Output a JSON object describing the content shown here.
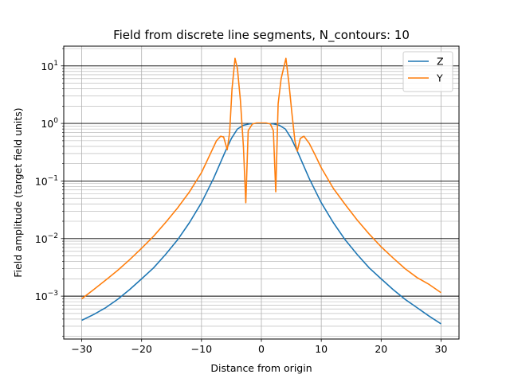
{
  "chart_data": {
    "type": "line",
    "title": "Field from discrete line segments, N_contours: 10",
    "xlabel": "Distance from origin",
    "ylabel": "Field amplitude (target field units)",
    "xlim": [
      -33,
      33
    ],
    "ylim": [
      0.00018,
      22
    ],
    "yscale": "log",
    "x_ticks": [
      -30,
      -20,
      -10,
      0,
      10,
      20,
      30
    ],
    "x_tick_labels": [
      "−30",
      "−20",
      "−10",
      "0",
      "10",
      "20",
      "30"
    ],
    "y_major_ticks": [
      0.001,
      0.01,
      0.1,
      1,
      10
    ],
    "y_tick_labels": [
      {
        "base": "10",
        "exp": "−3"
      },
      {
        "base": "10",
        "exp": "−2"
      },
      {
        "base": "10",
        "exp": "−1"
      },
      {
        "base": "10",
        "exp": "0"
      },
      {
        "base": "10",
        "exp": "1"
      }
    ],
    "grid": true,
    "legend_position": "top-right",
    "series": [
      {
        "name": "Z",
        "color": "#1f77b4",
        "points": [
          [
            -30,
            0.00038
          ],
          [
            -28,
            0.00048
          ],
          [
            -26,
            0.00063
          ],
          [
            -24,
            0.00088
          ],
          [
            -22,
            0.0013
          ],
          [
            -20,
            0.002
          ],
          [
            -18,
            0.0031
          ],
          [
            -16,
            0.0053
          ],
          [
            -14,
            0.0095
          ],
          [
            -12,
            0.019
          ],
          [
            -10,
            0.042
          ],
          [
            -8,
            0.11
          ],
          [
            -6,
            0.33
          ],
          [
            -5,
            0.55
          ],
          [
            -4,
            0.8
          ],
          [
            -3,
            0.93
          ],
          [
            -2,
            0.98
          ],
          [
            -1,
            1.0
          ],
          [
            0,
            1.0
          ],
          [
            1,
            1.0
          ],
          [
            2,
            0.98
          ],
          [
            3,
            0.93
          ],
          [
            4,
            0.8
          ],
          [
            5,
            0.55
          ],
          [
            6,
            0.33
          ],
          [
            8,
            0.11
          ],
          [
            10,
            0.042
          ],
          [
            12,
            0.019
          ],
          [
            14,
            0.0095
          ],
          [
            16,
            0.0053
          ],
          [
            18,
            0.0031
          ],
          [
            20,
            0.002
          ],
          [
            22,
            0.0013
          ],
          [
            24,
            0.00088
          ],
          [
            26,
            0.00063
          ],
          [
            28,
            0.00045
          ],
          [
            30,
            0.00033
          ]
        ]
      },
      {
        "name": "Y",
        "color": "#ff7f0e",
        "points": [
          [
            -30,
            0.0009
          ],
          [
            -28,
            0.0013
          ],
          [
            -26,
            0.0019
          ],
          [
            -24,
            0.0028
          ],
          [
            -22,
            0.0043
          ],
          [
            -20,
            0.0068
          ],
          [
            -18,
            0.011
          ],
          [
            -16,
            0.019
          ],
          [
            -14,
            0.034
          ],
          [
            -12,
            0.065
          ],
          [
            -10,
            0.14
          ],
          [
            -8.5,
            0.3
          ],
          [
            -7.5,
            0.5
          ],
          [
            -6.8,
            0.6
          ],
          [
            -6.3,
            0.58
          ],
          [
            -5.7,
            0.35
          ],
          [
            -5.3,
            0.7
          ],
          [
            -4.9,
            4
          ],
          [
            -4.4,
            13.5
          ],
          [
            -4.0,
            9
          ],
          [
            -3.5,
            2.5
          ],
          [
            -3.0,
            0.4
          ],
          [
            -2.6,
            0.042
          ],
          [
            -2.2,
            0.75
          ],
          [
            -1.5,
            0.98
          ],
          [
            -0.8,
            1.02
          ],
          [
            0,
            1.02
          ],
          [
            0.8,
            1.02
          ],
          [
            1.5,
            0.98
          ],
          [
            2.0,
            0.75
          ],
          [
            2.4,
            0.065
          ],
          [
            2.8,
            2.2
          ],
          [
            3.3,
            6
          ],
          [
            4.1,
            13.5
          ],
          [
            4.6,
            5
          ],
          [
            5.1,
            1.5
          ],
          [
            5.6,
            0.5
          ],
          [
            6.0,
            0.33
          ],
          [
            6.5,
            0.55
          ],
          [
            7.1,
            0.6
          ],
          [
            8,
            0.45
          ],
          [
            9,
            0.28
          ],
          [
            10,
            0.17
          ],
          [
            12,
            0.075
          ],
          [
            14,
            0.039
          ],
          [
            16,
            0.021
          ],
          [
            18,
            0.012
          ],
          [
            20,
            0.0072
          ],
          [
            22,
            0.0046
          ],
          [
            24,
            0.003
          ],
          [
            26,
            0.0021
          ],
          [
            28,
            0.0016
          ],
          [
            30,
            0.00115
          ]
        ]
      }
    ]
  }
}
